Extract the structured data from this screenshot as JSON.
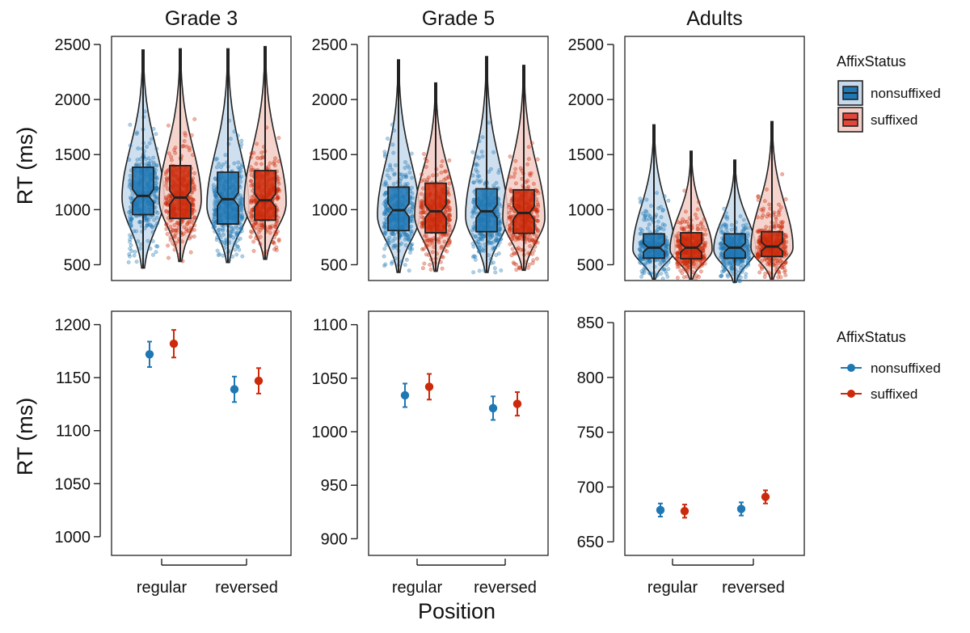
{
  "colors": {
    "nonsuffixed": "#1f77b4",
    "suffixed": "#cc2a0a",
    "nonsuffixed_light": "#c6d9ec",
    "suffixed_light": "#f4cdc6",
    "frame": "#222222"
  },
  "legend": {
    "title": "AffixStatus",
    "entries": [
      "nonsuffixed",
      "suffixed"
    ]
  },
  "labels": {
    "y_axis": "RT (ms)",
    "x_axis": "Position"
  },
  "chart_data": [
    {
      "type": "violin",
      "panel": "Grade 3",
      "title": "Grade 3",
      "ylabel": "RT (ms)",
      "ylim": [
        430,
        2500
      ],
      "yticks": [
        500,
        1000,
        1500,
        2000,
        2500
      ],
      "categories": [
        "regular",
        "reversed"
      ],
      "series": [
        {
          "name": "nonsuffixed",
          "color": "#1f77b4",
          "box": [
            {
              "min": 470,
              "q1": 955,
              "median": 1125,
              "q3": 1385,
              "max": 2450
            },
            {
              "min": 520,
              "q1": 870,
              "median": 1095,
              "q3": 1340,
              "max": 2460
            }
          ]
        },
        {
          "name": "suffixed",
          "color": "#cc2a0a",
          "box": [
            {
              "min": 530,
              "q1": 920,
              "median": 1110,
              "q3": 1400,
              "max": 2460
            },
            {
              "min": 550,
              "q1": 905,
              "median": 1085,
              "q3": 1355,
              "max": 2480
            }
          ]
        }
      ]
    },
    {
      "type": "violin",
      "panel": "Grade 5",
      "title": "Grade 5",
      "ylabel": "",
      "ylim": [
        430,
        2500
      ],
      "yticks": [
        500,
        1000,
        1500,
        2000,
        2500
      ],
      "categories": [
        "regular",
        "reversed"
      ],
      "series": [
        {
          "name": "nonsuffixed",
          "color": "#1f77b4",
          "box": [
            {
              "min": 430,
              "q1": 810,
              "median": 995,
              "q3": 1205,
              "max": 2360
            },
            {
              "min": 430,
              "q1": 800,
              "median": 985,
              "q3": 1190,
              "max": 2390
            }
          ]
        },
        {
          "name": "suffixed",
          "color": "#cc2a0a",
          "box": [
            {
              "min": 440,
              "q1": 790,
              "median": 985,
              "q3": 1240,
              "max": 2150
            },
            {
              "min": 450,
              "q1": 785,
              "median": 970,
              "q3": 1180,
              "max": 2310
            }
          ]
        }
      ]
    },
    {
      "type": "violin",
      "panel": "Adults",
      "title": "Adults",
      "ylabel": "",
      "ylim": [
        430,
        2500
      ],
      "yticks": [
        500,
        1000,
        1500,
        2000,
        2500
      ],
      "categories": [
        "regular",
        "reversed"
      ],
      "series": [
        {
          "name": "nonsuffixed",
          "color": "#1f77b4",
          "box": [
            {
              "min": 370,
              "q1": 560,
              "median": 655,
              "q3": 780,
              "max": 1770
            },
            {
              "min": 340,
              "q1": 560,
              "median": 655,
              "q3": 780,
              "max": 1450
            }
          ]
        },
        {
          "name": "suffixed",
          "color": "#cc2a0a",
          "box": [
            {
              "min": 370,
              "q1": 555,
              "median": 655,
              "q3": 790,
              "max": 1530
            },
            {
              "min": 370,
              "q1": 575,
              "median": 665,
              "q3": 800,
              "max": 1800
            }
          ]
        }
      ]
    },
    {
      "type": "scatter",
      "panel": "Grade 3",
      "title": "",
      "ylabel": "RT (ms)",
      "ylim": [
        990,
        1205
      ],
      "yticks": [
        1000,
        1050,
        1100,
        1150,
        1200
      ],
      "categories": [
        "regular",
        "reversed"
      ],
      "series": [
        {
          "name": "nonsuffixed",
          "color": "#1f77b4",
          "values": [
            1172,
            1139
          ],
          "lower": [
            1160,
            1127
          ],
          "upper": [
            1184,
            1151
          ]
        },
        {
          "name": "suffixed",
          "color": "#cc2a0a",
          "values": [
            1182,
            1147
          ],
          "lower": [
            1169,
            1135
          ],
          "upper": [
            1195,
            1159
          ]
        }
      ]
    },
    {
      "type": "scatter",
      "panel": "Grade 5",
      "title": "",
      "ylabel": "",
      "ylim": [
        892,
        1105
      ],
      "yticks": [
        900,
        950,
        1000,
        1050,
        1100
      ],
      "categories": [
        "regular",
        "reversed"
      ],
      "series": [
        {
          "name": "nonsuffixed",
          "color": "#1f77b4",
          "values": [
            1034,
            1022
          ],
          "lower": [
            1023,
            1011
          ],
          "upper": [
            1045,
            1033
          ]
        },
        {
          "name": "suffixed",
          "color": "#cc2a0a",
          "values": [
            1042,
            1026
          ],
          "lower": [
            1030,
            1015
          ],
          "upper": [
            1054,
            1037
          ]
        }
      ]
    },
    {
      "type": "scatter",
      "panel": "Adults",
      "title": "",
      "ylabel": "",
      "ylim": [
        645,
        853
      ],
      "yticks": [
        650,
        700,
        750,
        800,
        850
      ],
      "categories": [
        "regular",
        "reversed"
      ],
      "series": [
        {
          "name": "nonsuffixed",
          "color": "#1f77b4",
          "values": [
            679,
            680
          ],
          "lower": [
            673,
            674
          ],
          "upper": [
            685,
            686
          ]
        },
        {
          "name": "suffixed",
          "color": "#cc2a0a",
          "values": [
            678,
            691
          ],
          "lower": [
            672,
            685
          ],
          "upper": [
            684,
            697
          ]
        }
      ]
    }
  ]
}
